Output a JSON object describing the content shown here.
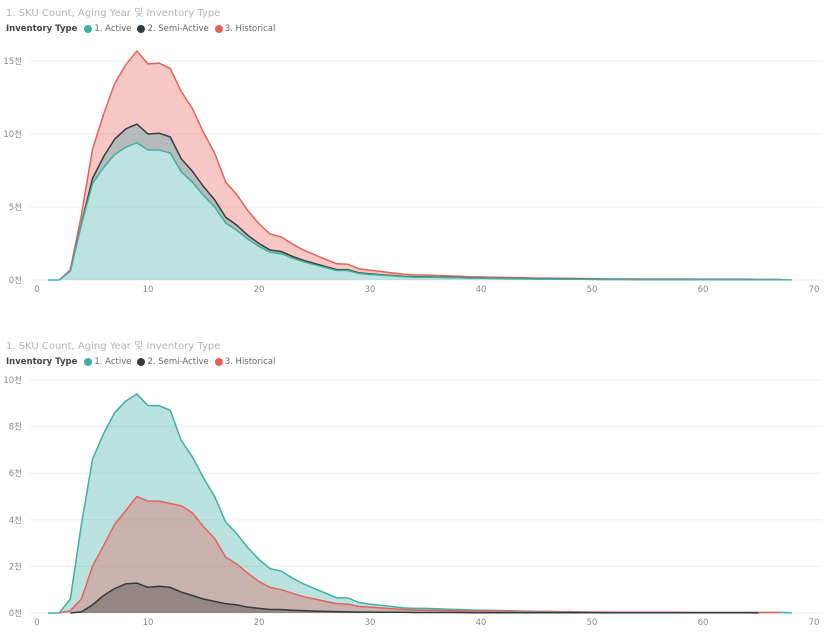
{
  "colors": {
    "active": "#3FAFA3",
    "semi": "#353B3E",
    "historical": "#E5625A",
    "grid": "#eeeeee"
  },
  "chart_data": [
    {
      "type": "area",
      "stacked": true,
      "title": "1. SKU Count, Aging Year 및 Inventory Type",
      "legend_title": "Inventory Type",
      "legend_placement": "top-left",
      "xticks": [
        "0",
        "10",
        "20",
        "30",
        "40",
        "50",
        "60",
        "70"
      ],
      "xlim": [
        0,
        70
      ],
      "yticks": [
        "0천",
        "5천",
        "10천",
        "15천"
      ],
      "ylim": [
        0,
        15
      ],
      "grid": true
    },
    {
      "type": "area",
      "stacked": false,
      "title": "1. SKU Count, Aging Year 및 Inventory Type",
      "legend_title": "Inventory Type",
      "legend_placement": "top-left",
      "xticks": [
        "0",
        "10",
        "20",
        "30",
        "40",
        "50",
        "60",
        "70"
      ],
      "xlim": [
        0,
        70
      ],
      "yticks": [
        "0천",
        "2천",
        "4천",
        "6천",
        "8천",
        "10천"
      ],
      "ylim": [
        0,
        10
      ],
      "grid": true
    }
  ],
  "series": [
    {
      "name": "1. Active",
      "key": "active",
      "unit": "천",
      "x_start": 1,
      "values": [
        0,
        0,
        0.6,
        3.8,
        6.6,
        7.7,
        8.6,
        9.1,
        9.4,
        8.9,
        8.9,
        8.7,
        7.4,
        6.7,
        5.8,
        5.0,
        3.9,
        3.4,
        2.8,
        2.3,
        1.9,
        1.8,
        1.5,
        1.25,
        1.05,
        0.85,
        0.65,
        0.65,
        0.45,
        0.38,
        0.33,
        0.28,
        0.22,
        0.2,
        0.2,
        0.18,
        0.16,
        0.15,
        0.13,
        0.12,
        0.11,
        0.1,
        0.09,
        0.08,
        0.07,
        0.07,
        0.06,
        0.06,
        0.05,
        0.04,
        0.03,
        0.03,
        0.03,
        0.02,
        0.02,
        0.02,
        0.02,
        0.02,
        0.02,
        0.02,
        0.02,
        0.02,
        0.02,
        0.02,
        0.02,
        0.02,
        0.02,
        0.01
      ]
    },
    {
      "name": "2. Semi-Active",
      "key": "semi",
      "unit": "천",
      "x_start": 3,
      "values": [
        0,
        0.05,
        0.35,
        0.75,
        1.05,
        1.25,
        1.28,
        1.1,
        1.15,
        1.1,
        0.9,
        0.75,
        0.6,
        0.5,
        0.4,
        0.35,
        0.25,
        0.2,
        0.15,
        0.15,
        0.12,
        0.1,
        0.08,
        0.07,
        0.06,
        0.05,
        0.04,
        0.04,
        0.03,
        0.03,
        0.03,
        0.02,
        0.02,
        0.02,
        0.02,
        0.02,
        0.01,
        0.01,
        0.01,
        0.01,
        0.01,
        0.01,
        0.01,
        0.01,
        0.01,
        0.01,
        0.01,
        0.01,
        0.01,
        0.01,
        0.01,
        0.01,
        0.01,
        0.01,
        0.01,
        0.01,
        0.01,
        0.01,
        0.01,
        0.01,
        0.01,
        0.01,
        0
      ]
    },
    {
      "name": "3. Historical",
      "key": "historical",
      "unit": "천",
      "x_start": 2,
      "values": [
        0,
        0.1,
        0.6,
        2.0,
        2.9,
        3.8,
        4.4,
        5.0,
        4.8,
        4.8,
        4.7,
        4.6,
        4.3,
        3.7,
        3.2,
        2.4,
        2.1,
        1.7,
        1.35,
        1.1,
        1.0,
        0.85,
        0.7,
        0.6,
        0.5,
        0.4,
        0.38,
        0.28,
        0.25,
        0.22,
        0.18,
        0.15,
        0.13,
        0.12,
        0.11,
        0.1,
        0.09,
        0.08,
        0.08,
        0.07,
        0.07,
        0.06,
        0.06,
        0.05,
        0.05,
        0.05,
        0.04,
        0.04,
        0.04,
        0.04,
        0.03,
        0.03,
        0.03,
        0.03,
        0.03,
        0.03,
        0.03,
        0.02,
        0.02,
        0.02,
        0.02,
        0.02,
        0.02,
        0.02,
        0.02,
        0.02
      ]
    }
  ]
}
